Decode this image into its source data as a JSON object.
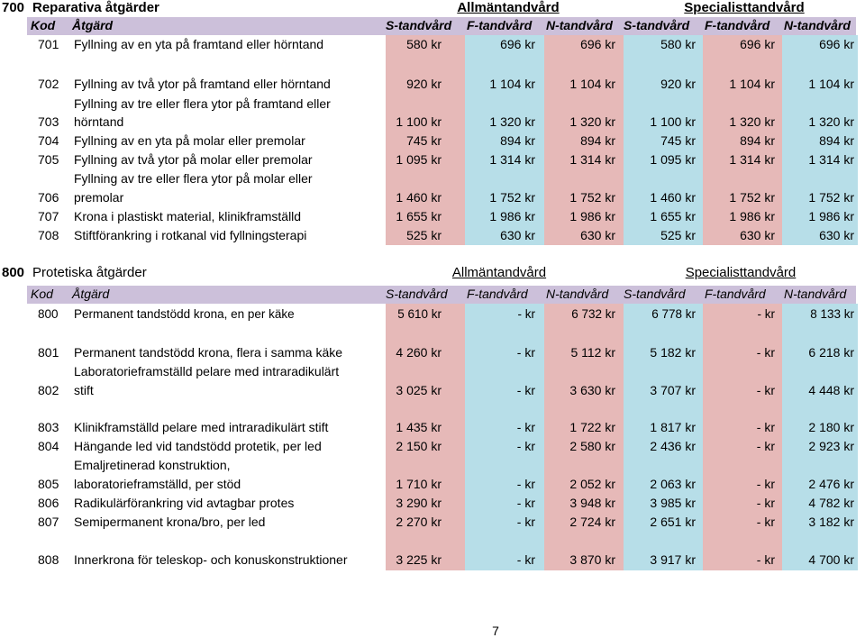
{
  "sections": [
    {
      "code": "700",
      "title": "Reparativa åtgärder",
      "group_general": "Allmäntandvård",
      "group_specialist": "Specialisttandvård",
      "headers": [
        "Kod",
        "Åtgärd",
        "S-tandvård",
        "F-tandvård",
        "N-tandvård",
        "S-tandvård",
        "F-tandvård",
        "N-tandvård"
      ],
      "rows": [
        {
          "code": "701",
          "label": [
            "Fyllning av en yta på framtand eller hörntand"
          ],
          "values": [
            "580 kr",
            "696 kr",
            "696 kr",
            "580 kr",
            "696 kr",
            "696 kr"
          ]
        },
        {
          "code": "702",
          "label": [
            "Fyllning av två ytor på framtand eller hörntand"
          ],
          "values": [
            "920 kr",
            "1 104 kr",
            "1 104 kr",
            "920 kr",
            "1 104 kr",
            "1 104 kr"
          ]
        },
        {
          "code": "703",
          "label": [
            "Fyllning av tre eller flera ytor på framtand eller",
            "hörntand"
          ],
          "values": [
            "1 100 kr",
            "1 320 kr",
            "1 320 kr",
            "1 100 kr",
            "1 320 kr",
            "1 320 kr"
          ]
        },
        {
          "code": "704",
          "label": [
            "Fyllning av en yta på molar eller premolar"
          ],
          "values": [
            "745 kr",
            "894 kr",
            "894 kr",
            "745 kr",
            "894 kr",
            "894 kr"
          ]
        },
        {
          "code": "705",
          "label": [
            "Fyllning av två ytor på molar eller premolar"
          ],
          "values": [
            "1 095 kr",
            "1 314 kr",
            "1 314 kr",
            "1 095 kr",
            "1 314 kr",
            "1 314 kr"
          ]
        },
        {
          "code": "706",
          "label": [
            "Fyllning av tre eller flera ytor på molar eller",
            "premolar"
          ],
          "values": [
            "1 460 kr",
            "1 752 kr",
            "1 752 kr",
            "1 460 kr",
            "1 752 kr",
            "1 752 kr"
          ]
        },
        {
          "code": "707",
          "label": [
            "Krona i plastiskt material, klinikframställd"
          ],
          "values": [
            "1 655 kr",
            "1 986 kr",
            "1 986 kr",
            "1 655 kr",
            "1 986 kr",
            "1 986 kr"
          ]
        },
        {
          "code": "708",
          "label": [
            "Stiftförankring i rotkanal vid fyllningsterapi"
          ],
          "values": [
            "525 kr",
            "630 kr",
            "630 kr",
            "525 kr",
            "630 kr",
            "630 kr"
          ]
        }
      ]
    },
    {
      "code": "800",
      "title": "Protetiska åtgärder",
      "group_general": "Allmäntandvård",
      "group_specialist": "Specialisttandvård",
      "headers": [
        "Kod",
        "Åtgärd",
        "S-tandvård",
        "F-tandvård",
        "N-tandvård",
        "S-tandvård",
        "F-tandvård",
        "N-tandvård"
      ],
      "rows": [
        {
          "code": "800",
          "label": [
            "Permanent tandstödd krona, en per käke"
          ],
          "values": [
            "5 610 kr",
            "- kr",
            "6 732 kr",
            "6 778 kr",
            "- kr",
            "8 133 kr"
          ]
        },
        {
          "code": "801",
          "label": [
            "Permanent tandstödd krona, flera i samma käke"
          ],
          "values": [
            "4 260 kr",
            "- kr",
            "5 112 kr",
            "5 182 kr",
            "- kr",
            "6 218 kr"
          ]
        },
        {
          "code": "802",
          "label": [
            "Laboratorieframställd pelare med  intraradikulärt",
            "stift"
          ],
          "values": [
            "3 025 kr",
            "- kr",
            "3 630 kr",
            "3 707 kr",
            "- kr",
            "4 448 kr"
          ]
        },
        {
          "code": "803",
          "label": [
            "Klinikframställd pelare med intraradikulärt stift"
          ],
          "values": [
            "1 435 kr",
            "- kr",
            "1 722 kr",
            "1 817 kr",
            "- kr",
            "2 180 kr"
          ]
        },
        {
          "code": "804",
          "label": [
            "Hängande led vid tandstödd protetik, per led"
          ],
          "values": [
            "2 150 kr",
            "- kr",
            "2 580 kr",
            "2 436 kr",
            "- kr",
            "2 923 kr"
          ]
        },
        {
          "code": "805",
          "label": [
            "Emaljretinerad konstruktion,",
            "laboratorieframställd, per stöd"
          ],
          "values": [
            "1 710 kr",
            "- kr",
            "2 052 kr",
            "2 063 kr",
            "- kr",
            "2 476 kr"
          ]
        },
        {
          "code": "806",
          "label": [
            "Radikulärförankring vid avtagbar protes"
          ],
          "values": [
            "3 290 kr",
            "- kr",
            "3 948 kr",
            "3 985 kr",
            "- kr",
            "4 782 kr"
          ]
        },
        {
          "code": "807",
          "label": [
            "Semipermanent krona/bro, per led"
          ],
          "values": [
            "2 270 kr",
            "- kr",
            "2 724 kr",
            "2 651 kr",
            "- kr",
            "3 182 kr"
          ]
        },
        {
          "code": "808",
          "label": [
            "Innerkrona för teleskop- och konuskonstruktioner"
          ],
          "values": [
            "3 225 kr",
            "- kr",
            "3 870 kr",
            "3 917 kr",
            "- kr",
            "4 700 kr"
          ]
        }
      ]
    }
  ],
  "page_number": "7"
}
